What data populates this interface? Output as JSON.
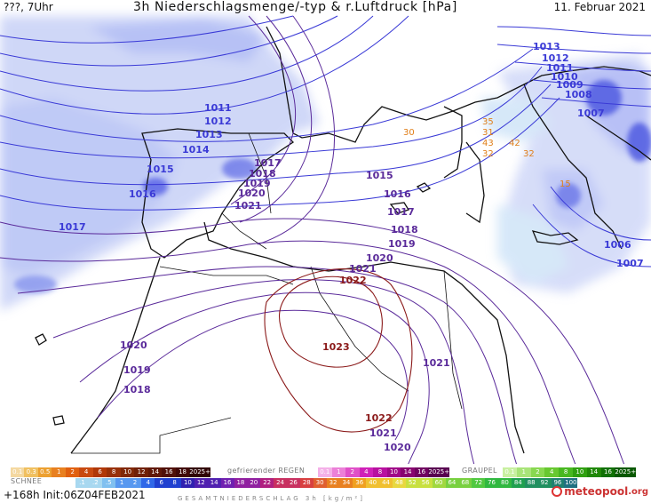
{
  "header": {
    "run_label": "???, 7Uhr",
    "title": "3h Niederschlagsmenge/-typ & r.Luftdruck [hPa]",
    "date": "11. Februar 2021"
  },
  "isobars": {
    "blue": [
      "1013",
      "1012",
      "1011",
      "1010",
      "1009",
      "1008",
      "1007",
      "1011",
      "1012",
      "1013",
      "1014",
      "1015",
      "1016",
      "1017",
      "1006",
      "1007"
    ],
    "purple": [
      "1017",
      "1018",
      "1019",
      "1020",
      "1021",
      "1015",
      "1016",
      "1017",
      "1018",
      "1019",
      "1020",
      "1021",
      "1020",
      "1019",
      "1018",
      "1021",
      "1021",
      "1020"
    ],
    "red": [
      "1022",
      "1023",
      "1022"
    ]
  },
  "orange_labels": [
    "35",
    "31",
    "43",
    "42",
    "32",
    "32",
    "30",
    "15"
  ],
  "colors": {
    "blue_isobar": "#3a3ad6",
    "purple_isobar": "#5a2a9a",
    "red_isobar": "#8b1a1a",
    "coast": "#111111",
    "precip": "#7f8ef0"
  },
  "legend": {
    "schnee_label": "SCHNEE",
    "schnee_scale": [
      "0.1",
      "0.3",
      "0.5",
      "1",
      "2",
      "4",
      "6",
      "8",
      "10",
      "12",
      "14",
      "16",
      "18",
      "2025+"
    ],
    "regen_label": "gefrierender REGEN",
    "regen_scale": [
      "0.1",
      "1",
      "2",
      "4",
      "8",
      "10",
      "14",
      "16",
      "2025+"
    ],
    "graupel_label": "GRAUPEL",
    "graupel_scale": [
      "0.1",
      "1",
      "2",
      "4",
      "8",
      "10",
      "14",
      "16",
      "2025+"
    ],
    "main_scale": [
      ".1",
      ".2",
      ".5",
      "1",
      "2",
      "4",
      "6",
      "8",
      "10",
      "12",
      "14",
      "16",
      "18",
      "20",
      "22",
      "24",
      "26",
      "28",
      "30",
      "32",
      "34",
      "36",
      "40",
      "44",
      "48",
      "52",
      "56",
      "60",
      "64",
      "68",
      "72",
      "76",
      "80",
      "84",
      "88",
      "92",
      "96",
      "100"
    ],
    "gesamt_label": "GESAMTNIEDERSCHLAG 3h [kg/m²]"
  },
  "footer": {
    "forecast": "+168h Init:06Z04FEB2021",
    "logo": "meteopool",
    "logo_suffix": ".org"
  }
}
